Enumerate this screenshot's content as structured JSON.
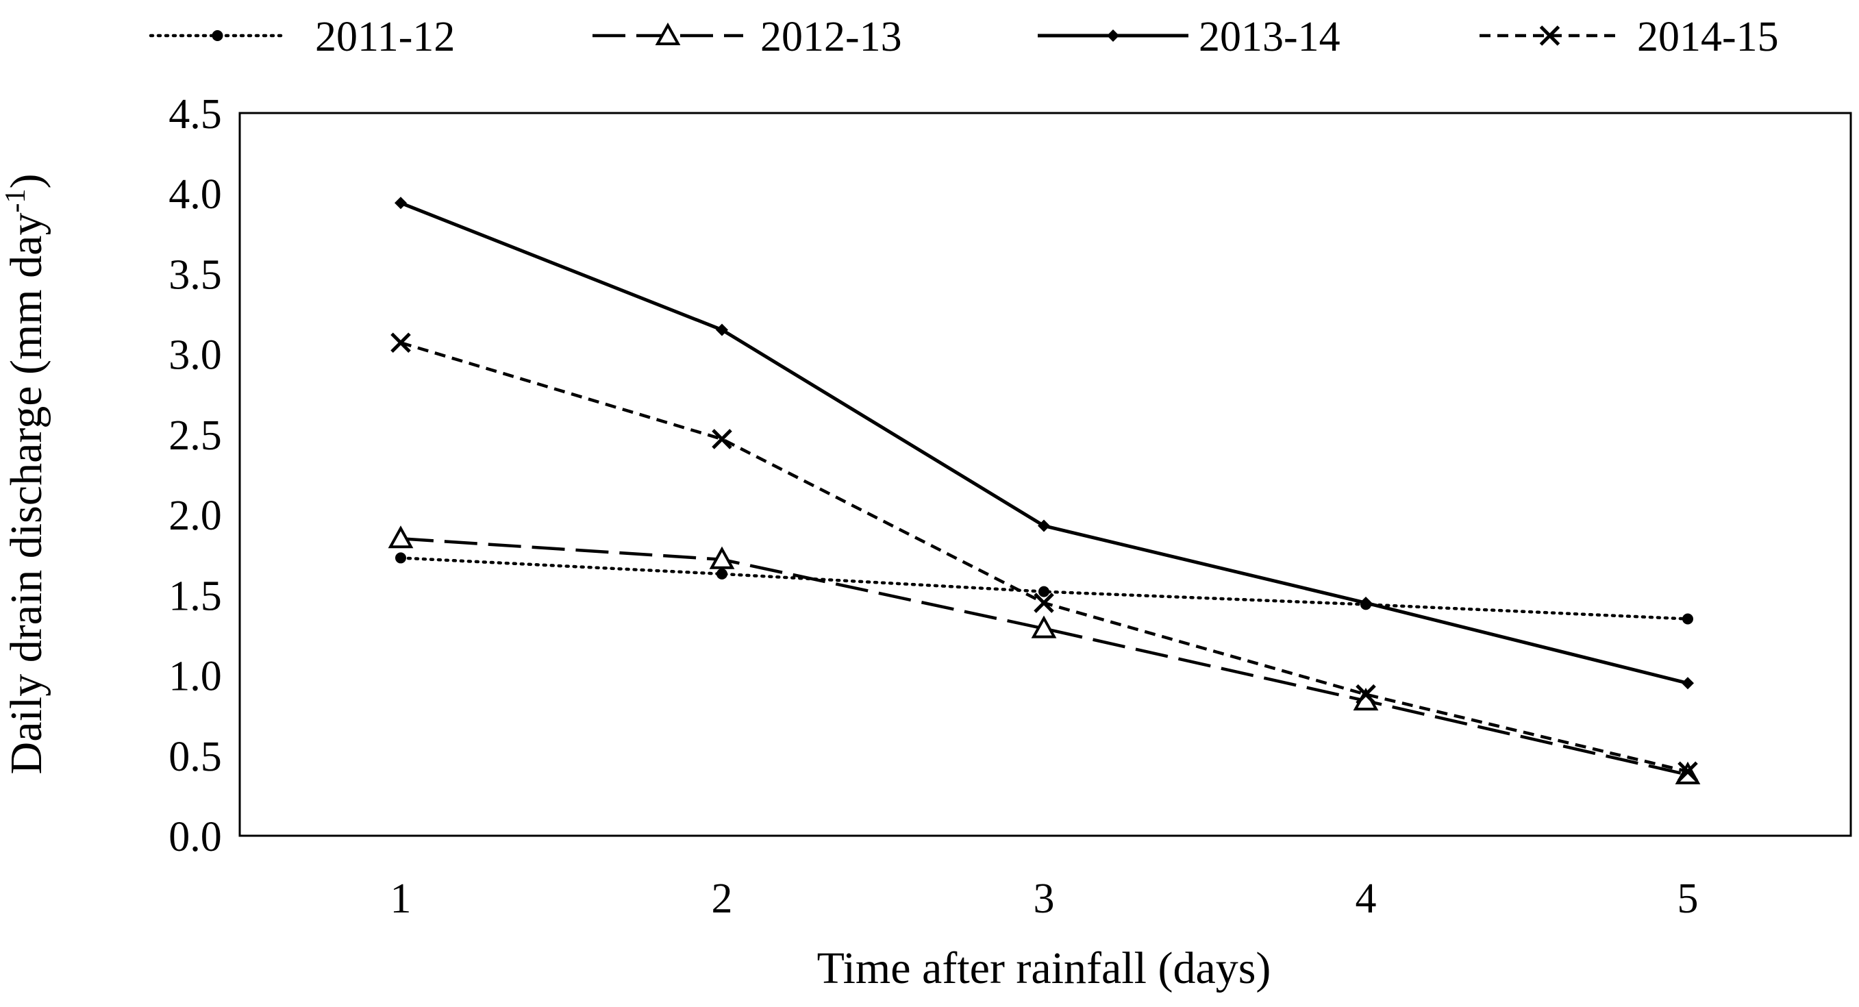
{
  "chart_data": {
    "type": "line",
    "title": "",
    "xlabel": "Time after rainfall (days)",
    "ylabel": "Daily drain discharge (mm day",
    "ylabel_sup": "-1",
    "ylabel_close": ")",
    "x": [
      1,
      2,
      3,
      4,
      5
    ],
    "ylim": [
      0,
      4.5
    ],
    "yticks": [
      "0.0",
      "0.5",
      "1.0",
      "1.5",
      "2.0",
      "2.5",
      "3.0",
      "3.5",
      "4.0",
      "4.5"
    ],
    "xticks": [
      "1",
      "2",
      "3",
      "4",
      "5"
    ],
    "grid": false,
    "legend_position": "top",
    "series": [
      {
        "name": "2011-12",
        "values": [
          1.73,
          1.63,
          1.52,
          1.44,
          1.35
        ],
        "line_style": "dotted",
        "marker": "circle",
        "color": "#000000"
      },
      {
        "name": "2012-13",
        "values": [
          1.85,
          1.72,
          1.29,
          0.84,
          0.38
        ],
        "line_style": "long-dash",
        "marker": "open-triangle",
        "color": "#000000"
      },
      {
        "name": "2013-14",
        "values": [
          3.94,
          3.15,
          1.93,
          1.45,
          0.95
        ],
        "line_style": "solid",
        "marker": "diamond",
        "color": "#000000"
      },
      {
        "name": "2014-15",
        "values": [
          3.07,
          2.47,
          1.45,
          0.88,
          0.4
        ],
        "line_style": "short-dash",
        "marker": "x",
        "color": "#000000"
      }
    ]
  }
}
